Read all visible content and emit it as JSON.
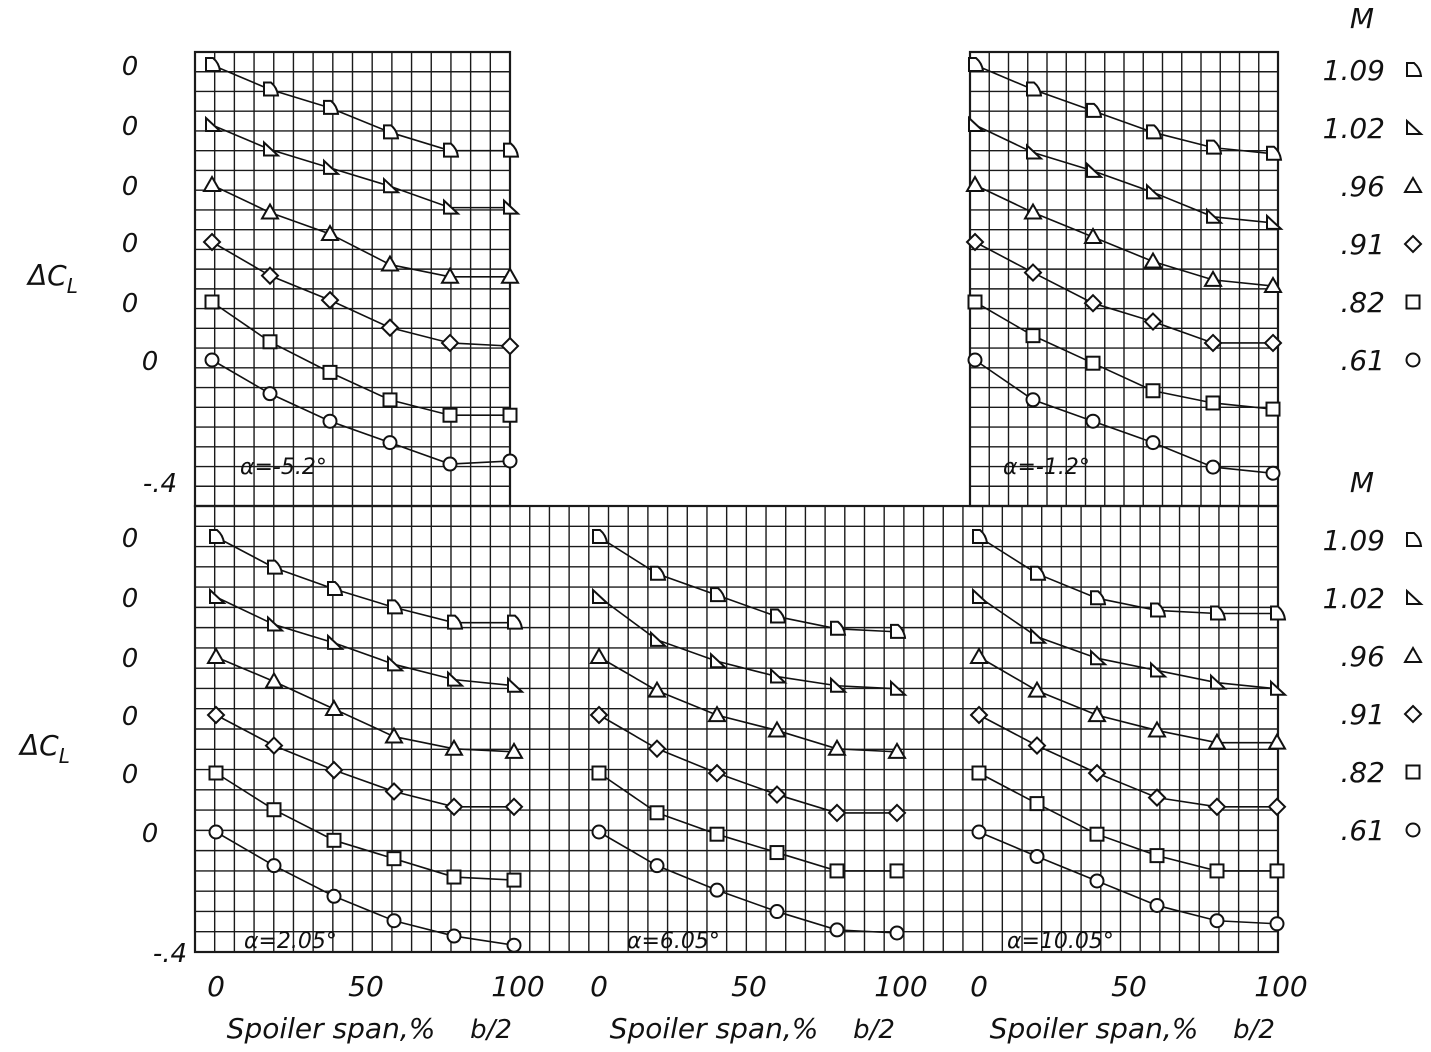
{
  "figure": {
    "delta_cl_label": "ΔC",
    "delta_cl_sub": "L",
    "mach_header": "M",
    "zero_label": "0",
    "bottom_label": "-.4",
    "xlabel": "Spoiler span,%",
    "xlabel_fraction": "b/2",
    "x_ticks": [
      "0",
      "50",
      "100"
    ],
    "mach_legend": [
      {
        "value": "1.09",
        "marker": "flagged-triangle-right"
      },
      {
        "value": "1.02",
        "marker": "triangle-right"
      },
      {
        "value": ".96",
        "marker": "triangle-up"
      },
      {
        "value": ".91",
        "marker": "diamond"
      },
      {
        "value": ".82",
        "marker": "square"
      },
      {
        "value": ".61",
        "marker": "circle"
      }
    ]
  },
  "chart_data": [
    {
      "type": "line",
      "alpha_label": "α = -5.2°",
      "xlabel": "",
      "ylabel": "ΔC_L",
      "x": [
        0,
        20,
        40,
        60,
        80,
        100
      ],
      "ylim": [
        -0.4,
        0
      ],
      "series": [
        {
          "name": "1.09",
          "values": [
            0,
            -0.08,
            -0.14,
            -0.22,
            -0.28,
            -0.28
          ]
        },
        {
          "name": "1.02",
          "values": [
            0,
            -0.08,
            -0.14,
            -0.2,
            -0.27,
            -0.27
          ]
        },
        {
          "name": "0.96",
          "values": [
            0,
            -0.09,
            -0.16,
            -0.26,
            -0.3,
            -0.3
          ]
        },
        {
          "name": "0.91",
          "values": [
            0,
            -0.11,
            -0.19,
            -0.28,
            -0.33,
            -0.34
          ]
        },
        {
          "name": "0.82",
          "values": [
            0,
            -0.13,
            -0.23,
            -0.32,
            -0.37,
            -0.37
          ]
        },
        {
          "name": "0.61",
          "values": [
            0,
            -0.11,
            -0.2,
            -0.27,
            -0.34,
            -0.33
          ]
        }
      ]
    },
    {
      "type": "line",
      "alpha_label": "α = -1.2°",
      "xlabel": "",
      "ylabel": "ΔC_L",
      "x": [
        0,
        20,
        40,
        60,
        80,
        100
      ],
      "ylim": [
        -0.4,
        0
      ],
      "series": [
        {
          "name": "1.09",
          "values": [
            0,
            -0.08,
            -0.15,
            -0.22,
            -0.27,
            -0.29
          ]
        },
        {
          "name": "1.02",
          "values": [
            0,
            -0.09,
            -0.15,
            -0.22,
            -0.3,
            -0.32
          ]
        },
        {
          "name": "0.96",
          "values": [
            0,
            -0.09,
            -0.17,
            -0.25,
            -0.31,
            -0.33
          ]
        },
        {
          "name": "0.91",
          "values": [
            0,
            -0.1,
            -0.2,
            -0.26,
            -0.33,
            -0.33
          ]
        },
        {
          "name": "0.82",
          "values": [
            0,
            -0.11,
            -0.2,
            -0.29,
            -0.33,
            -0.35
          ]
        },
        {
          "name": "0.61",
          "values": [
            0,
            -0.13,
            -0.2,
            -0.27,
            -0.35,
            -0.37
          ]
        }
      ]
    },
    {
      "type": "line",
      "alpha_label": "α = 2.05°",
      "xlabel": "",
      "ylabel": "ΔC_L",
      "x": [
        0,
        20,
        40,
        60,
        80,
        100
      ],
      "ylim": [
        -0.4,
        0
      ],
      "series": [
        {
          "name": "1.09",
          "values": [
            0,
            -0.1,
            -0.17,
            -0.23,
            -0.28,
            -0.28
          ]
        },
        {
          "name": "1.02",
          "values": [
            0,
            -0.09,
            -0.15,
            -0.22,
            -0.27,
            -0.29
          ]
        },
        {
          "name": "0.96",
          "values": [
            0,
            -0.08,
            -0.17,
            -0.26,
            -0.3,
            -0.31
          ]
        },
        {
          "name": "0.91",
          "values": [
            0,
            -0.1,
            -0.18,
            -0.25,
            -0.3,
            -0.3
          ]
        },
        {
          "name": "0.82",
          "values": [
            0,
            -0.12,
            -0.22,
            -0.28,
            -0.34,
            -0.35
          ]
        },
        {
          "name": "0.61",
          "values": [
            0,
            -0.11,
            -0.21,
            -0.29,
            -0.34,
            -0.37
          ]
        }
      ]
    },
    {
      "type": "line",
      "alpha_label": "α = 6.05°",
      "xlabel": "",
      "ylabel": "ΔC_L",
      "x": [
        0,
        20,
        40,
        60,
        80,
        100
      ],
      "ylim": [
        -0.4,
        0
      ],
      "series": [
        {
          "name": "1.09",
          "values": [
            0,
            -0.12,
            -0.19,
            -0.26,
            -0.3,
            -0.31
          ]
        },
        {
          "name": "1.02",
          "values": [
            0,
            -0.14,
            -0.21,
            -0.26,
            -0.29,
            -0.3
          ]
        },
        {
          "name": "0.96",
          "values": [
            0,
            -0.11,
            -0.19,
            -0.24,
            -0.3,
            -0.31
          ]
        },
        {
          "name": "0.91",
          "values": [
            0,
            -0.11,
            -0.19,
            -0.26,
            -0.32,
            -0.32
          ]
        },
        {
          "name": "0.82",
          "values": [
            0,
            -0.13,
            -0.2,
            -0.26,
            -0.32,
            -0.32
          ]
        },
        {
          "name": "0.61",
          "values": [
            0,
            -0.11,
            -0.19,
            -0.26,
            -0.32,
            -0.33
          ]
        }
      ]
    },
    {
      "type": "line",
      "alpha_label": "α = 10.05°",
      "xlabel": "",
      "ylabel": "ΔC_L",
      "x": [
        0,
        20,
        40,
        60,
        80,
        100
      ],
      "ylim": [
        -0.4,
        0
      ],
      "series": [
        {
          "name": "1.09",
          "values": [
            0,
            -0.12,
            -0.2,
            -0.24,
            -0.25,
            -0.25
          ]
        },
        {
          "name": "1.02",
          "values": [
            0,
            -0.13,
            -0.2,
            -0.24,
            -0.28,
            -0.3
          ]
        },
        {
          "name": "0.96",
          "values": [
            0,
            -0.11,
            -0.19,
            -0.24,
            -0.28,
            -0.28
          ]
        },
        {
          "name": "0.91",
          "values": [
            0,
            -0.1,
            -0.19,
            -0.27,
            -0.3,
            -0.3
          ]
        },
        {
          "name": "0.82",
          "values": [
            0,
            -0.1,
            -0.2,
            -0.27,
            -0.32,
            -0.32
          ]
        },
        {
          "name": "0.61",
          "values": [
            0,
            -0.08,
            -0.16,
            -0.24,
            -0.29,
            -0.3
          ]
        }
      ]
    }
  ]
}
